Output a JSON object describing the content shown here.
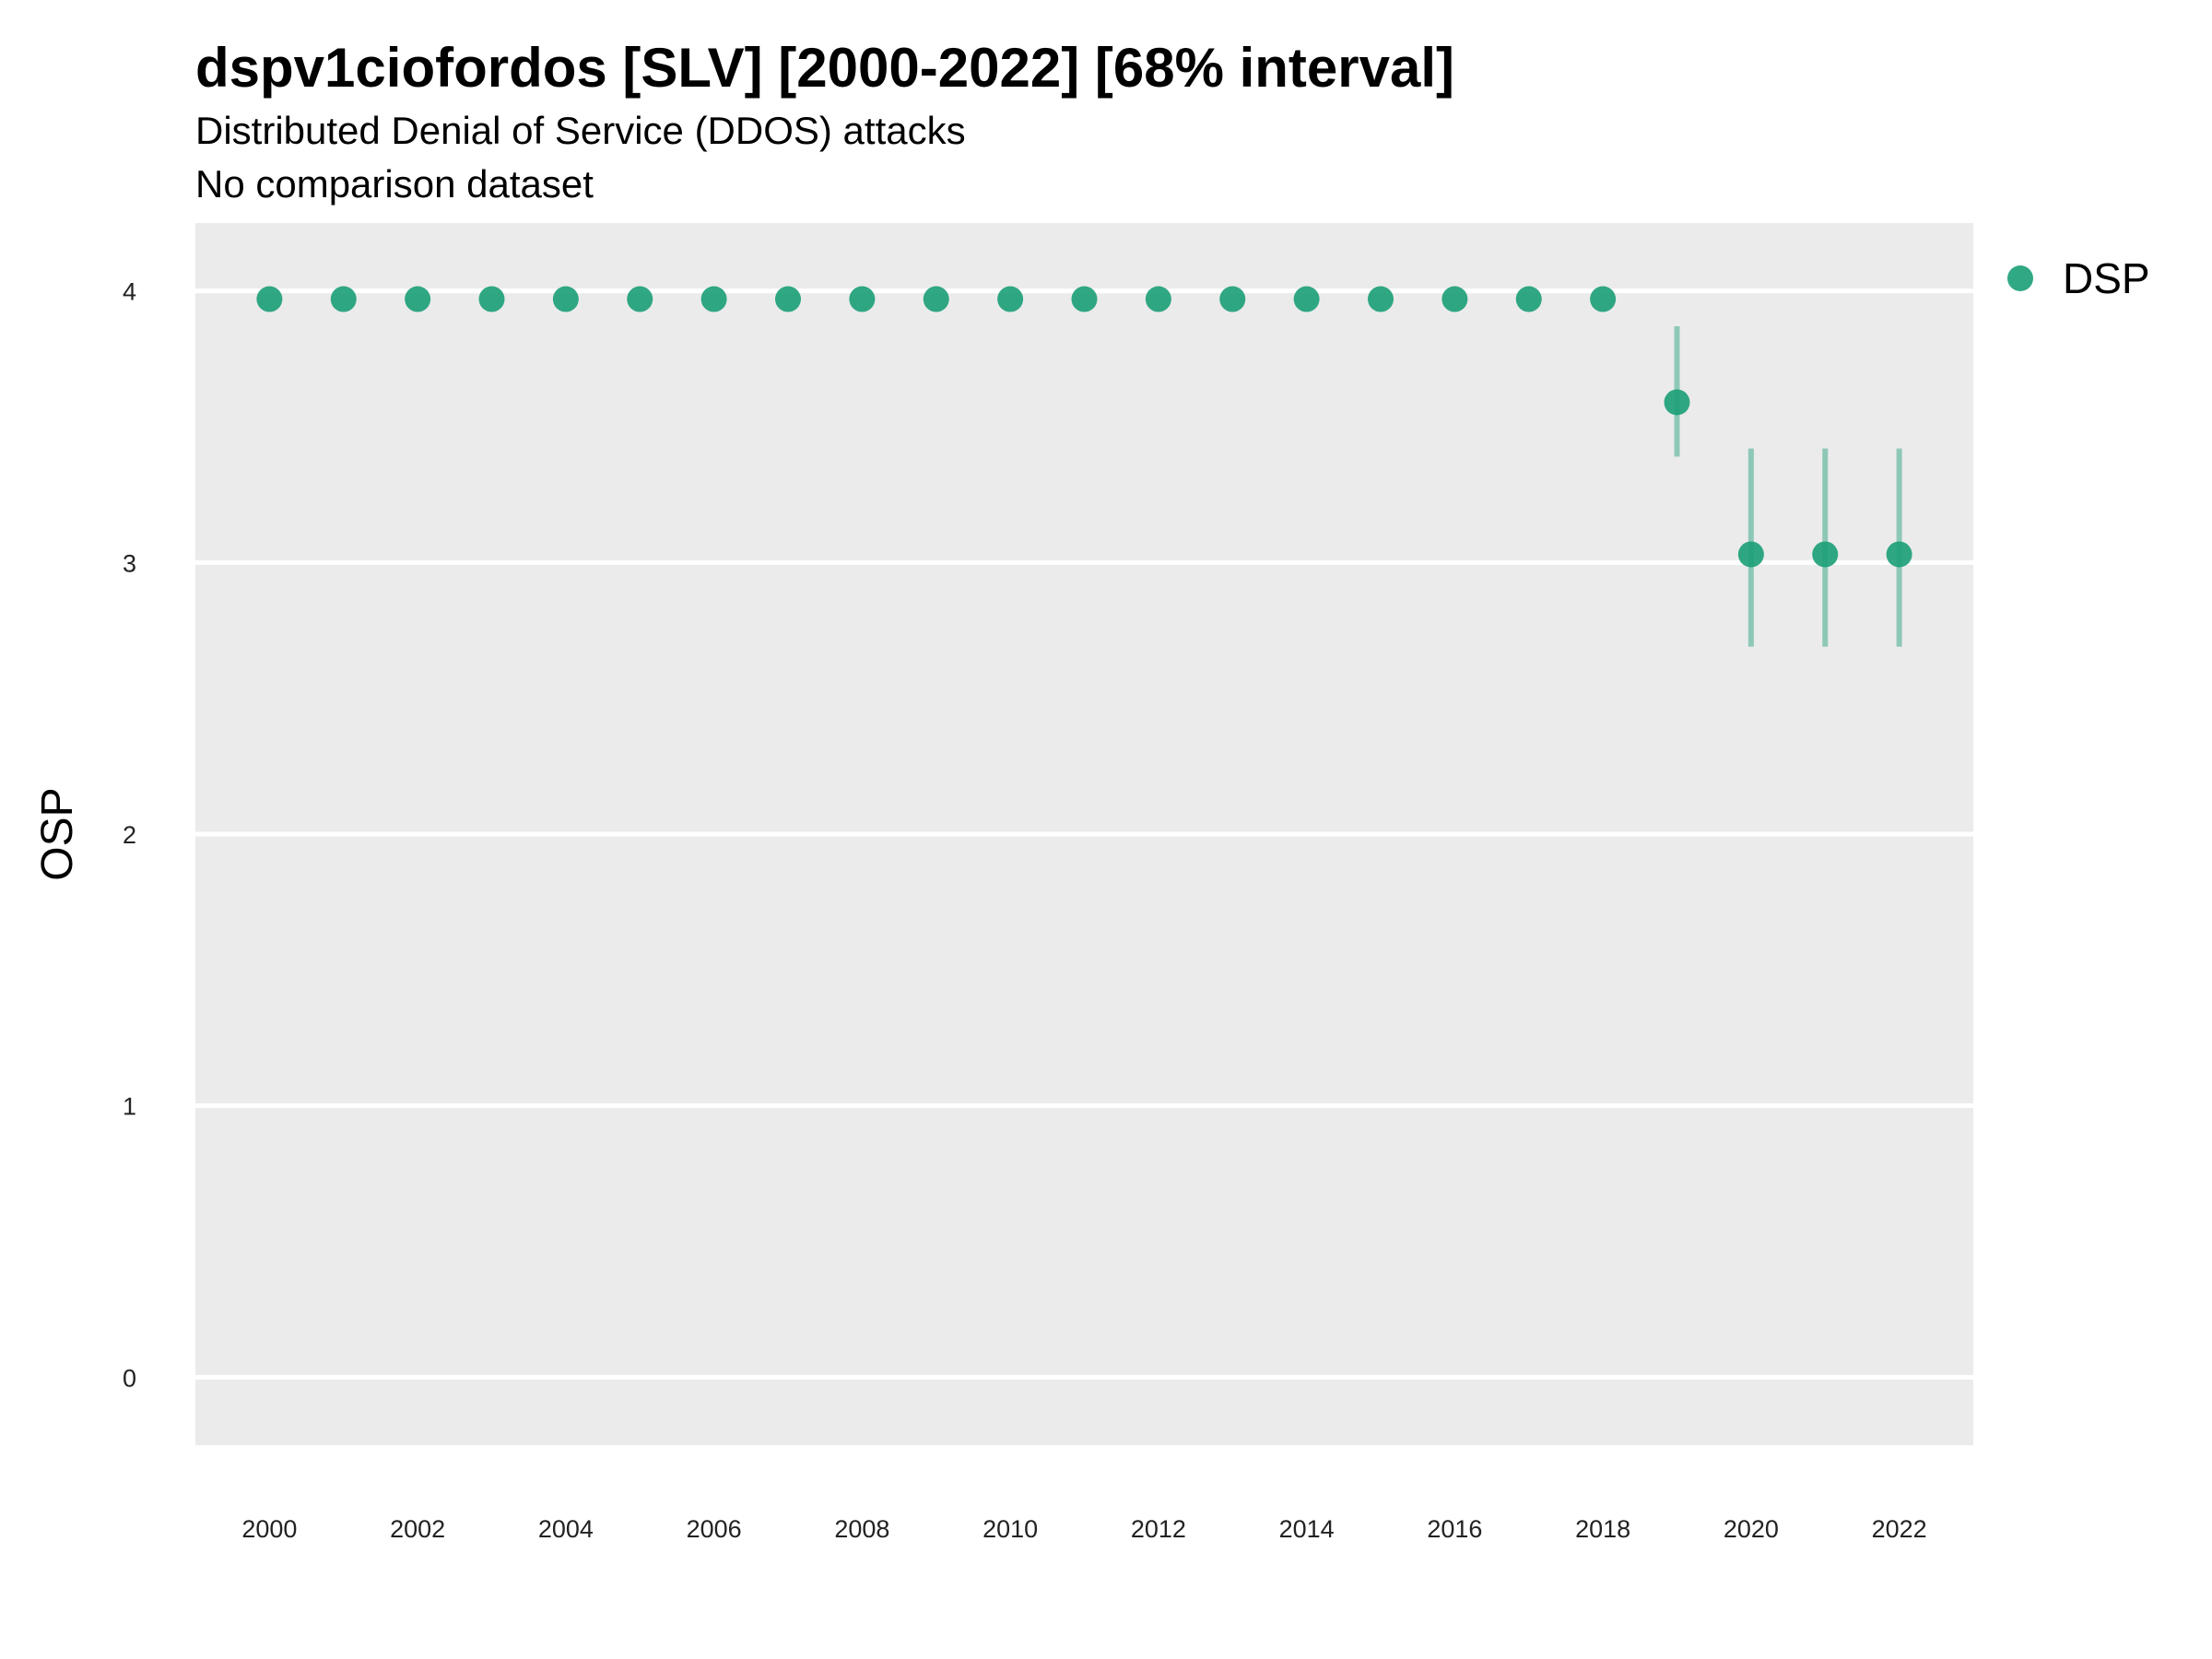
{
  "colors": {
    "series": "#1b9e77",
    "panel": "#ebebeb",
    "grid": "#ffffff"
  },
  "chart_data": {
    "type": "scatter",
    "title": "dspv1ciofordos [SLV] [2000-2022] [68% interval]",
    "subtitle": "Distributed Denial of Service (DDOS) attacks",
    "subtitle2": "No comparison dataset",
    "xlabel": "",
    "ylabel": "OSP",
    "xlim": [
      1999,
      2023
    ],
    "ylim": [
      -0.25,
      4.25
    ],
    "x_ticks": [
      2000,
      2002,
      2004,
      2006,
      2008,
      2010,
      2012,
      2014,
      2016,
      2018,
      2020,
      2022
    ],
    "y_ticks": [
      0,
      1,
      2,
      3,
      4
    ],
    "grid": true,
    "legend": "right",
    "series": [
      {
        "name": "DSP",
        "points": [
          {
            "x": 2000,
            "y": 3.97
          },
          {
            "x": 2001,
            "y": 3.97
          },
          {
            "x": 2002,
            "y": 3.97
          },
          {
            "x": 2003,
            "y": 3.97
          },
          {
            "x": 2004,
            "y": 3.97
          },
          {
            "x": 2005,
            "y": 3.97
          },
          {
            "x": 2006,
            "y": 3.97
          },
          {
            "x": 2007,
            "y": 3.97
          },
          {
            "x": 2008,
            "y": 3.97
          },
          {
            "x": 2009,
            "y": 3.97
          },
          {
            "x": 2010,
            "y": 3.97
          },
          {
            "x": 2011,
            "y": 3.97
          },
          {
            "x": 2012,
            "y": 3.97
          },
          {
            "x": 2013,
            "y": 3.97
          },
          {
            "x": 2014,
            "y": 3.97
          },
          {
            "x": 2015,
            "y": 3.97
          },
          {
            "x": 2016,
            "y": 3.97
          },
          {
            "x": 2017,
            "y": 3.97
          },
          {
            "x": 2018,
            "y": 3.97
          },
          {
            "x": 2019,
            "y": 3.59,
            "low": 3.39,
            "high": 3.87
          },
          {
            "x": 2020,
            "y": 3.03,
            "low": 2.69,
            "high": 3.42
          },
          {
            "x": 2021,
            "y": 3.03,
            "low": 2.69,
            "high": 3.42
          },
          {
            "x": 2022,
            "y": 3.03,
            "low": 2.69,
            "high": 3.42
          }
        ]
      }
    ]
  }
}
